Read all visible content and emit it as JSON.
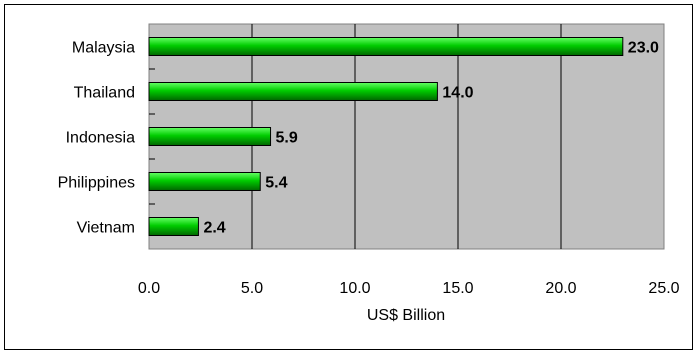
{
  "chart_data": {
    "type": "bar",
    "orientation": "horizontal",
    "categories": [
      "Malaysia",
      "Thailand",
      "Indonesia",
      "Philippines",
      "Vietnam"
    ],
    "values": [
      23.0,
      14.0,
      5.9,
      5.4,
      2.4
    ],
    "value_labels": [
      "23.0",
      "14.0",
      "5.9",
      "5.4",
      "2.4"
    ],
    "xlabel": "US$ Billion",
    "ylabel": "",
    "xlim": [
      0,
      25
    ],
    "xticks": [
      0,
      5,
      10,
      15,
      20,
      25
    ],
    "xtick_labels": [
      "0.0",
      "5.0",
      "10.0",
      "15.0",
      "20.0",
      "25.0"
    ],
    "grid": "vertical",
    "colors": {
      "plot_background": "#c0c0c0",
      "bar_light": "#66ff66",
      "bar_mid": "#00cc00",
      "bar_dark": "#006600",
      "gridline": "#000000"
    }
  }
}
